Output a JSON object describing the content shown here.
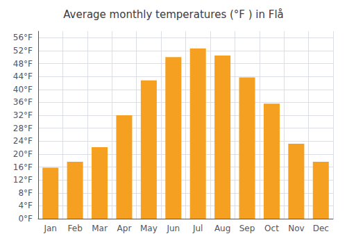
{
  "chart_data": {
    "type": "bar",
    "title": "Average monthly temperatures (°F ) in Flå",
    "categories": [
      "Jan",
      "Feb",
      "Mar",
      "Apr",
      "May",
      "Jun",
      "Jul",
      "Aug",
      "Sep",
      "Oct",
      "Nov",
      "Dec"
    ],
    "values": [
      15.8,
      17.6,
      22.1,
      32.0,
      42.8,
      50.0,
      52.7,
      50.5,
      43.7,
      35.6,
      23.2,
      17.6
    ],
    "color": "#F5A020",
    "ylim": [
      0,
      58
    ],
    "yticks": [
      {
        "value": 0,
        "label": "0°F"
      },
      {
        "value": 4,
        "label": "4°F"
      },
      {
        "value": 8,
        "label": "8°F"
      },
      {
        "value": 12,
        "label": "12°F"
      },
      {
        "value": 16,
        "label": "16°F"
      },
      {
        "value": 20,
        "label": "20°F"
      },
      {
        "value": 24,
        "label": "24°F"
      },
      {
        "value": 28,
        "label": "28°F"
      },
      {
        "value": 32,
        "label": "32°F"
      },
      {
        "value": 36,
        "label": "36°F"
      },
      {
        "value": 40,
        "label": "40°F"
      },
      {
        "value": 44,
        "label": "44°F"
      },
      {
        "value": 48,
        "label": "48°F"
      },
      {
        "value": 52,
        "label": "52°F"
      },
      {
        "value": 56,
        "label": "56°F"
      }
    ],
    "grid": true
  }
}
